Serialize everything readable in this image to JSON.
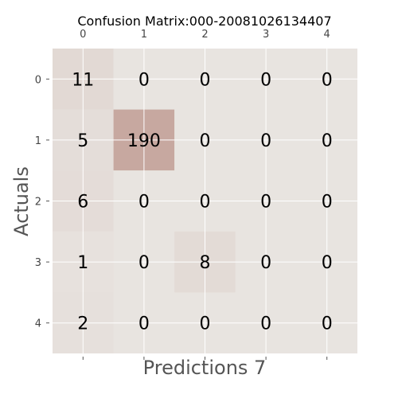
{
  "chart_data": {
    "type": "heatmap",
    "title": "Confusion Matrix:000-20081026134407",
    "xlabel": "Predictions 7",
    "ylabel": "Actuals",
    "x_ticks": [
      "0",
      "1",
      "2",
      "3",
      "4"
    ],
    "y_ticks": [
      "0",
      "1",
      "2",
      "3",
      "4"
    ],
    "x_tick_position": "top",
    "grid": true,
    "matrix": [
      [
        11,
        0,
        0,
        0,
        0
      ],
      [
        5,
        190,
        0,
        0,
        0
      ],
      [
        6,
        0,
        0,
        0,
        0
      ],
      [
        1,
        0,
        8,
        0,
        0
      ],
      [
        2,
        0,
        0,
        0,
        0
      ]
    ],
    "colormap": {
      "low": "#e8e4e0",
      "high": "#c7a8a0"
    },
    "colors": {
      "background": "#e8e4e0",
      "grid": "#ffffff",
      "cell_text": "#000000",
      "axis_text": "#555555",
      "tick_text": "#444444"
    }
  }
}
